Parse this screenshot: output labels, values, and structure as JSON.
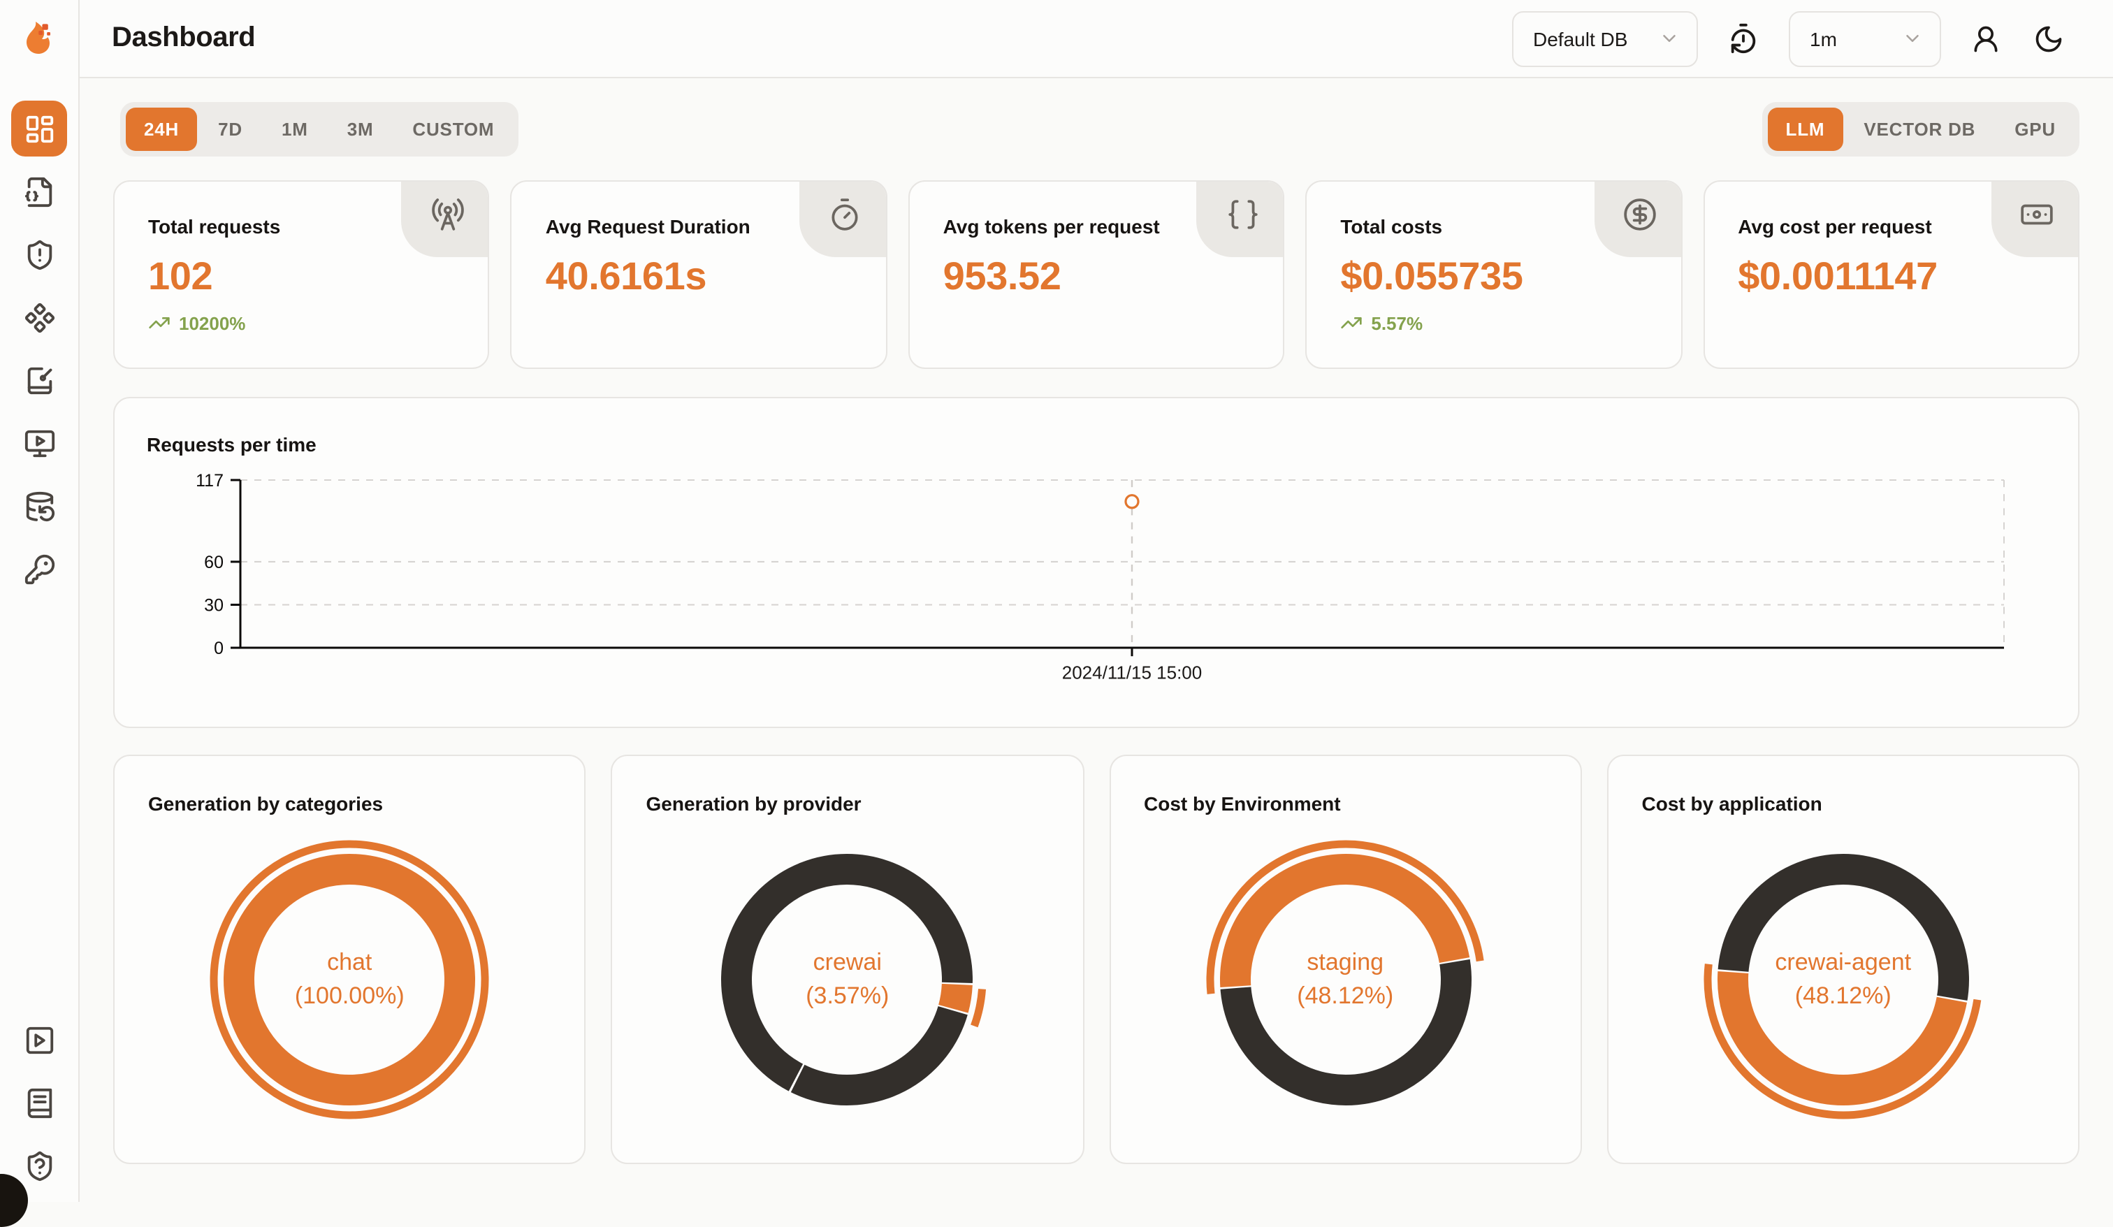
{
  "colors": {
    "accent": "#e2762e",
    "dark_segment": "#332f2b",
    "positive": "#84a24d"
  },
  "app": {
    "title": "Dashboard",
    "logo": "flame-logo"
  },
  "header": {
    "database_select": {
      "value": "Default DB",
      "icon": "chevron-down-icon"
    },
    "interval_select": {
      "value": "1m",
      "icon": "chevron-down-icon"
    },
    "icons": [
      "timer-reset-icon",
      "user-icon",
      "moon-icon"
    ]
  },
  "sidebar": {
    "items": [
      {
        "icon": "layout-dashboard-icon",
        "active": true
      },
      {
        "icon": "file-code-icon"
      },
      {
        "icon": "shield-alert-icon"
      },
      {
        "icon": "component-icon"
      },
      {
        "icon": "notebook-pen-icon"
      },
      {
        "icon": "monitor-play-icon"
      },
      {
        "icon": "database-backup-icon"
      },
      {
        "icon": "key-icon"
      }
    ],
    "footer_items": [
      {
        "icon": "square-play-icon"
      },
      {
        "icon": "book-text-icon"
      },
      {
        "icon": "shield-question-icon"
      }
    ]
  },
  "filters": {
    "time_ranges": [
      "24H",
      "7D",
      "1M",
      "3M",
      "CUSTOM"
    ],
    "active_time_range": "24H",
    "modes": [
      "LLM",
      "VECTOR DB",
      "GPU"
    ],
    "active_mode": "LLM"
  },
  "stats": [
    {
      "label": "Total requests",
      "value": "102",
      "trend": "10200%",
      "icon": "radio-tower-icon"
    },
    {
      "label": "Avg Request Duration",
      "value": "40.6161s",
      "icon": "timer-icon"
    },
    {
      "label": "Avg tokens per request",
      "value": "953.52",
      "icon": "braces-icon"
    },
    {
      "label": "Total costs",
      "value": "$0.055735",
      "trend": "5.57%",
      "icon": "circle-dollar-sign-icon"
    },
    {
      "label": "Avg cost per request",
      "value": "$0.0011147",
      "icon": "banknote-icon"
    }
  ],
  "chart_data": [
    {
      "type": "line",
      "title": "Requests per time",
      "x": [
        "2024/11/15 15:00"
      ],
      "series": [
        {
          "name": "requests",
          "values": [
            102
          ]
        }
      ],
      "ylim": [
        0,
        117
      ],
      "yticks": [
        0,
        30,
        60,
        117
      ],
      "grid": "dashed",
      "legend": "none"
    },
    {
      "type": "donut",
      "title": "Generation by categories",
      "segments": [
        {
          "label": "chat",
          "pct": 100.0,
          "color": "accent"
        }
      ],
      "center_label": "chat",
      "center_value": "(100.00%)"
    },
    {
      "type": "donut",
      "title": "Generation by provider",
      "segments": [
        {
          "label": "crewai",
          "pct": 3.57,
          "color": "accent"
        },
        {
          "label": "",
          "pct": 96.43,
          "color": "dark"
        }
      ],
      "center_label": "crewai",
      "center_value": "(3.57%)"
    },
    {
      "type": "donut",
      "title": "Cost by Environment",
      "segments": [
        {
          "label": "staging",
          "pct": 48.12,
          "color": "accent"
        },
        {
          "label": "",
          "pct": 51.88,
          "color": "dark"
        }
      ],
      "center_label": "staging",
      "center_value": "(48.12%)"
    },
    {
      "type": "donut",
      "title": "Cost by application",
      "segments": [
        {
          "label": "crewai-agent",
          "pct": 48.12,
          "color": "accent"
        },
        {
          "label": "",
          "pct": 51.88,
          "color": "dark"
        }
      ],
      "center_label": "crewai-agent",
      "center_value": "(48.12%)"
    }
  ]
}
